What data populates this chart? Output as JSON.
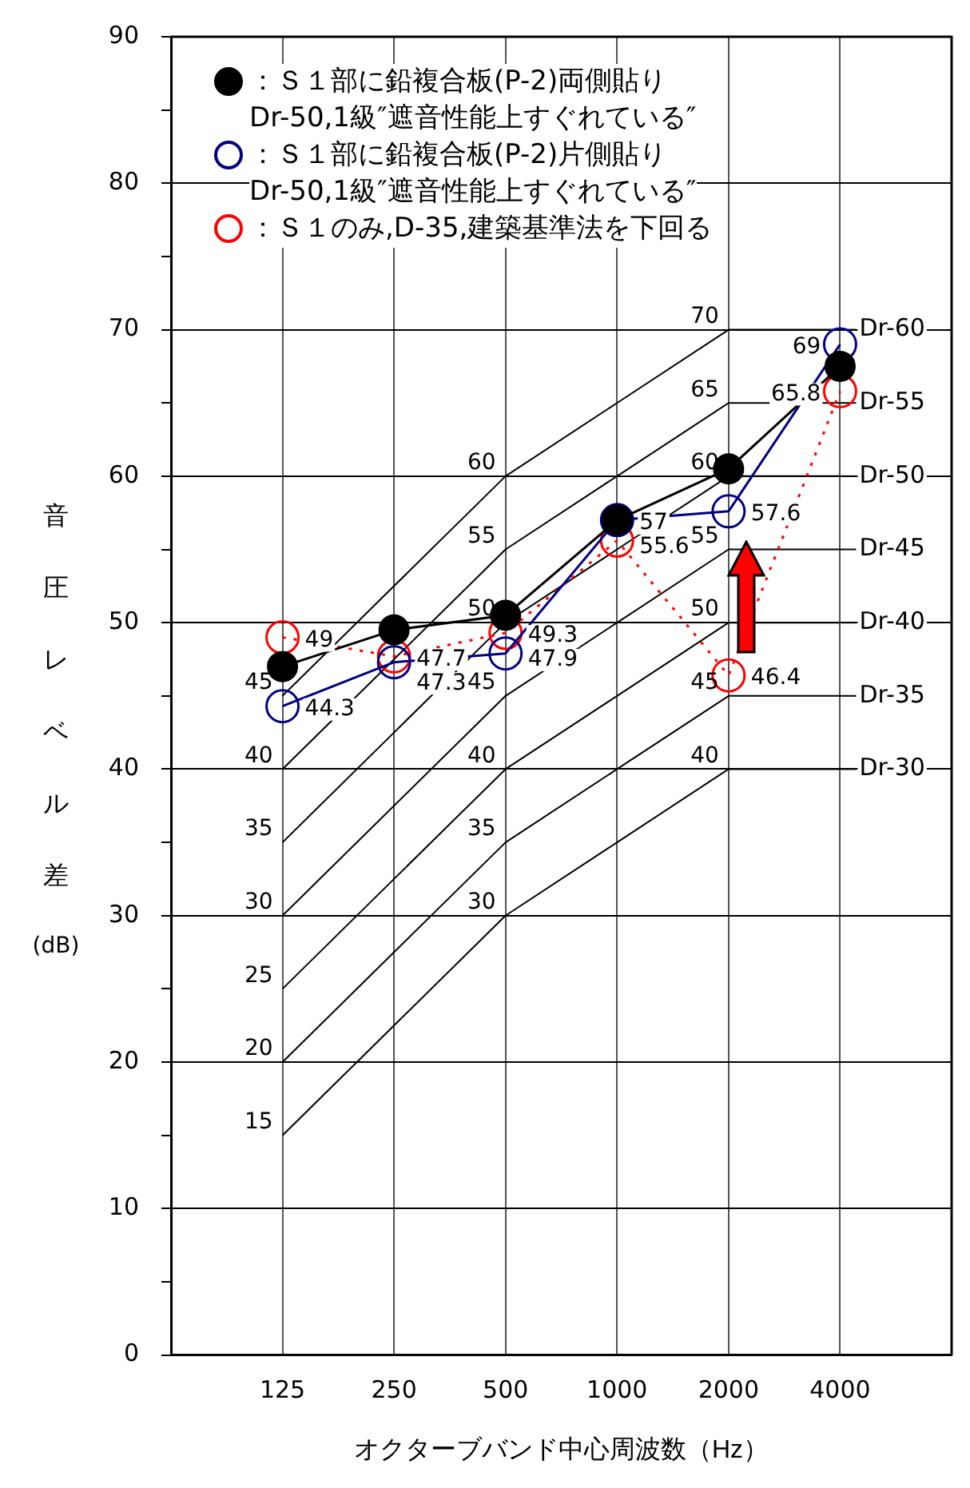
{
  "chart_data": {
    "type": "line",
    "xlabel": "オクターブバンド中心周波数（Hz）",
    "ylabel": "音圧レベル差(dB)",
    "categories": [
      "125",
      "250",
      "500",
      "1000",
      "2000",
      "4000"
    ],
    "ylim": [
      0,
      90
    ],
    "yticks": [
      0,
      {
        "value": 5,
        "label": null
      },
      10,
      {
        "value": 15,
        "label": null
      },
      20,
      {
        "value": 25,
        "label": null
      },
      30,
      {
        "value": 35,
        "label": null
      },
      40,
      {
        "value": 45,
        "label": null
      },
      50,
      {
        "value": 55,
        "label": null
      },
      60,
      {
        "value": 65,
        "label": null
      },
      70,
      {
        "value": 75,
        "label": null
      },
      80,
      {
        "value": 85,
        "label": null
      },
      90
    ],
    "grid": true,
    "legend": "top left",
    "series": [
      {
        "name": "：Ｓ１部に鉛複合板(P-2)両側貼り\nDr-50,1級″遮音性能上すぐれている″",
        "color": "#000000",
        "marker": "circle",
        "line_style": "solid",
        "values": [
          47,
          49.5,
          50.5,
          57,
          60.5,
          67.5
        ]
      },
      {
        "name": "：Ｓ１部に鉛複合板(P-2)片側貼り\nDr-50,1級″遮音性能上すぐれている″",
        "color": "#000080",
        "marker": "circle",
        "line_style": "solid",
        "values": [
          44.3,
          47.3,
          47.9,
          57,
          57.6,
          69
        ],
        "value_labels": [
          "44.3",
          "47.3",
          "47.9",
          "57",
          "57.6",
          "69"
        ]
      },
      {
        "name": "：Ｓ１のみ,D-35,建築基準法を下回る",
        "color": "#ff0000",
        "marker": "circle",
        "line_style": "dotted",
        "values": [
          49,
          47.7,
          49.3,
          55.6,
          46.4,
          65.8
        ],
        "value_labels": [
          "49",
          "47.7",
          "49.3",
          "55.6",
          "46.4",
          "65.8"
        ]
      },
      {
        "name": "Dr-60",
        "color": "#000000",
        "marker": "none",
        "line_style": "solid",
        "values": [
          45,
          52.5,
          60,
          65,
          70,
          70
        ],
        "value_labels": [
          "45",
          null,
          "60",
          null,
          "70",
          null
        ]
      },
      {
        "name": "Dr-55",
        "color": "#000000",
        "marker": "none",
        "line_style": "solid",
        "values": [
          40,
          47.5,
          55,
          60,
          65,
          65
        ],
        "value_labels": [
          "40",
          null,
          "55",
          null,
          "65",
          null
        ]
      },
      {
        "name": "Dr-50",
        "color": "#000000",
        "marker": "none",
        "line_style": "solid",
        "values": [
          35,
          42.5,
          50,
          55,
          60,
          60
        ],
        "value_labels": [
          "35",
          null,
          "50",
          null,
          "60",
          null
        ]
      },
      {
        "name": "Dr-45",
        "color": "#000000",
        "marker": "none",
        "line_style": "solid",
        "values": [
          30,
          37.5,
          45,
          50,
          55,
          55
        ],
        "value_labels": [
          "30",
          null,
          "45",
          null,
          "55",
          null
        ]
      },
      {
        "name": "Dr-40",
        "color": "#000000",
        "marker": "none",
        "line_style": "solid",
        "values": [
          25,
          32.5,
          40,
          45,
          50,
          50
        ],
        "value_labels": [
          "25",
          null,
          "40",
          null,
          "50",
          null
        ]
      },
      {
        "name": "Dr-35",
        "color": "#000000",
        "marker": "none",
        "line_style": "solid",
        "values": [
          20,
          27.5,
          35,
          40,
          45,
          45
        ],
        "value_labels": [
          "20",
          null,
          "35",
          null,
          "45",
          null
        ]
      },
      {
        "name": "Dr-30",
        "color": "#000000",
        "marker": "none",
        "line_style": "solid",
        "values": [
          15,
          22.5,
          30,
          35,
          40,
          40
        ],
        "value_labels": [
          "15",
          null,
          "30",
          null,
          "40",
          null
        ]
      }
    ]
  }
}
